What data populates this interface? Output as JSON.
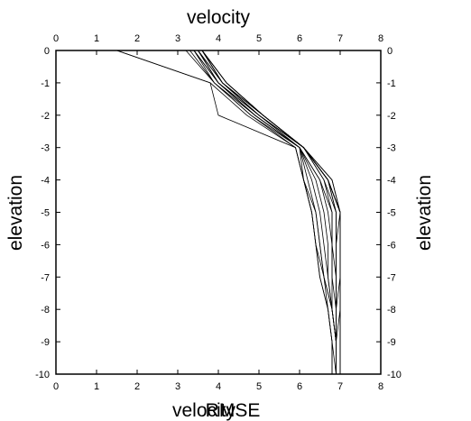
{
  "chart_data": {
    "type": "line",
    "title_top": "velocity",
    "xlabel_bottom_overlap_1": "velocity",
    "xlabel_bottom_overlap_2": "RMSE",
    "ylabel_left": "elevation",
    "ylabel_right": "elevation",
    "xlim": [
      0,
      8
    ],
    "ylim": [
      -10,
      0
    ],
    "x_ticks": [
      0,
      1,
      2,
      3,
      4,
      5,
      6,
      7,
      8
    ],
    "y_ticks": [
      0,
      -1,
      -2,
      -3,
      -4,
      -5,
      -6,
      -7,
      -8,
      -9,
      -10
    ],
    "x_tick_labels": [
      "0",
      "1",
      "2",
      "3",
      "4",
      "5",
      "6",
      "7",
      "8"
    ],
    "y_tick_labels": [
      "0",
      "-1",
      "-2",
      "-3",
      "-4",
      "-5",
      "-6",
      "-7",
      "-8",
      "-9",
      "-10"
    ],
    "grid": false,
    "line_color": "#000000",
    "y": [
      0,
      -1,
      -2,
      -3,
      -4,
      -5,
      -6,
      -7,
      -8,
      -9,
      -10
    ],
    "series": [
      {
        "x": [
          1.5,
          3.8,
          4.0,
          5.9,
          6.1,
          6.3,
          6.4,
          6.5,
          6.7,
          6.8,
          6.8
        ]
      },
      {
        "x": [
          1.5,
          3.8,
          4.7,
          5.9,
          6.1,
          6.3,
          6.4,
          6.5,
          6.7,
          6.8,
          6.8
        ]
      },
      {
        "x": [
          3.2,
          3.9,
          4.8,
          5.9,
          6.1,
          6.4,
          6.5,
          6.6,
          6.7,
          6.8,
          6.9
        ]
      },
      {
        "x": [
          3.3,
          3.9,
          4.8,
          6.0,
          6.1,
          6.3,
          6.4,
          6.6,
          6.8,
          6.9,
          6.9
        ]
      },
      {
        "x": [
          3.4,
          3.9,
          4.9,
          6.0,
          6.2,
          6.4,
          6.5,
          6.6,
          6.8,
          6.9,
          6.9
        ]
      },
      {
        "x": [
          3.4,
          4.0,
          4.9,
          6.0,
          6.3,
          6.5,
          6.6,
          6.7,
          6.8,
          6.9,
          6.9
        ]
      },
      {
        "x": [
          3.4,
          4.0,
          4.9,
          6.0,
          6.4,
          6.6,
          6.7,
          6.7,
          6.8,
          6.9,
          6.9
        ]
      },
      {
        "x": [
          3.5,
          4.0,
          4.9,
          6.0,
          6.5,
          6.7,
          6.8,
          6.8,
          6.8,
          6.9,
          6.9
        ]
      },
      {
        "x": [
          3.5,
          4.0,
          5.0,
          6.0,
          6.5,
          6.8,
          6.8,
          6.8,
          6.9,
          6.9,
          6.9
        ]
      },
      {
        "x": [
          3.5,
          4.0,
          5.0,
          6.1,
          6.6,
          6.8,
          6.8,
          6.9,
          6.9,
          6.9,
          6.9
        ]
      },
      {
        "x": [
          3.5,
          4.1,
          5.0,
          6.1,
          6.6,
          6.9,
          6.9,
          6.9,
          6.9,
          6.9,
          6.9
        ]
      },
      {
        "x": [
          3.5,
          4.1,
          5.0,
          6.1,
          6.7,
          6.9,
          6.9,
          6.9,
          6.9,
          6.9,
          6.9
        ]
      },
      {
        "x": [
          3.6,
          4.1,
          5.0,
          6.1,
          6.7,
          6.9,
          6.9,
          6.9,
          6.9,
          6.9,
          6.9
        ]
      },
      {
        "x": [
          3.6,
          4.1,
          5.1,
          6.1,
          6.7,
          7.0,
          6.9,
          6.9,
          6.9,
          6.9,
          6.9
        ]
      },
      {
        "x": [
          3.6,
          4.1,
          5.1,
          6.1,
          6.7,
          7.0,
          7.0,
          7.0,
          6.9,
          6.9,
          6.9
        ]
      },
      {
        "x": [
          3.6,
          4.1,
          5.1,
          6.1,
          6.7,
          7.0,
          7.0,
          7.0,
          7.0,
          6.9,
          6.9
        ]
      },
      {
        "x": [
          3.6,
          4.2,
          5.1,
          6.1,
          6.7,
          7.0,
          7.0,
          7.0,
          7.0,
          7.0,
          7.0
        ]
      },
      {
        "x": [
          3.6,
          4.2,
          5.1,
          6.1,
          6.7,
          7.0,
          7.0,
          7.0,
          7.0,
          7.0,
          7.0
        ]
      },
      {
        "x": [
          3.6,
          4.2,
          5.1,
          6.1,
          6.8,
          7.0,
          7.0,
          7.0,
          7.0,
          7.0,
          7.0
        ]
      },
      {
        "x": [
          3.6,
          4.2,
          5.1,
          6.1,
          6.8,
          7.0,
          7.0,
          7.0,
          7.0,
          7.0,
          7.0
        ]
      }
    ]
  }
}
